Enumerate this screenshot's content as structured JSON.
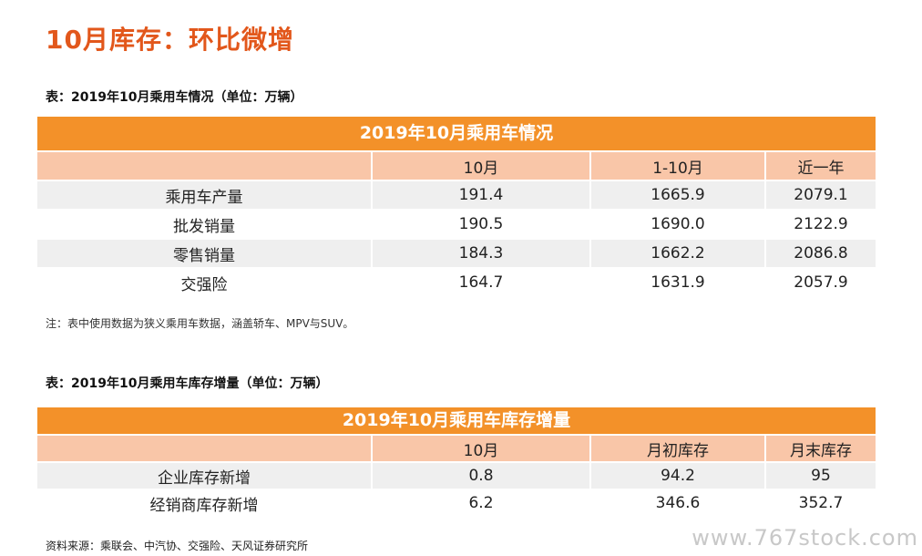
{
  "page_title": "10月库存：环比微增",
  "table1": {
    "caption": "表：2019年10月乘用车情况（单位：万辆）",
    "header_title": "2019年10月乘用车情况",
    "columns": [
      "",
      "10月",
      "1-10月",
      "近一年"
    ],
    "rows": [
      {
        "label": "乘用车产量",
        "v1": "191.4",
        "v2": "1665.9",
        "v3": "2079.1"
      },
      {
        "label": "批发销量",
        "v1": "190.5",
        "v2": "1690.0",
        "v3": "2122.9"
      },
      {
        "label": "零售销量",
        "v1": "184.3",
        "v2": "1662.2",
        "v3": "2086.8"
      },
      {
        "label": "交强险",
        "v1": "164.7",
        "v2": "1631.9",
        "v3": "2057.9"
      }
    ],
    "note": "注：表中使用数据为狭义乘用车数据，涵盖轿车、MPV与SUV。"
  },
  "table2": {
    "caption": "表：2019年10月乘用车库存增量（单位：万辆）",
    "header_title": "2019年10月乘用车库存增量",
    "columns": [
      "",
      "10月",
      "月初库存",
      "月末库存"
    ],
    "rows": [
      {
        "label": "企业库存新增",
        "v1": "0.8",
        "v2": "94.2",
        "v3": "95"
      },
      {
        "label": "经销商库存新增",
        "v1": "6.2",
        "v2": "346.6",
        "v3": "352.7"
      }
    ]
  },
  "source": "资料来源：乘联会、中汽协、交强险、天风证券研究所",
  "watermark": "www.767stock.com",
  "colors": {
    "accent": "#e2571b",
    "header": "#f39129",
    "subheader": "#f9c6a8",
    "shade": "#efefef"
  }
}
